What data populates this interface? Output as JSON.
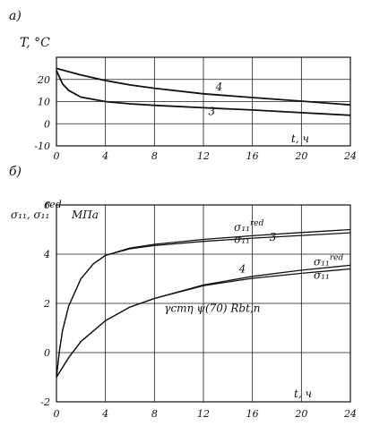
{
  "chart_data": [
    {
      "panel_label": "a)",
      "type": "line",
      "ylabel": "T, °C",
      "xlabel": "t, ч",
      "xlim": [
        0,
        24
      ],
      "ylim": [
        -10,
        30
      ],
      "xticks": [
        "0",
        "4",
        "8",
        "12",
        "16",
        "20",
        "24"
      ],
      "yticks": [
        "20",
        "10",
        "0",
        "-10"
      ],
      "ytick_values": [
        20,
        10,
        0,
        -10
      ],
      "grid": true,
      "series": [
        {
          "name": "4",
          "x": [
            0,
            1,
            2,
            4,
            6,
            8,
            12,
            16,
            20,
            24
          ],
          "values": [
            25,
            23.5,
            22,
            19.5,
            17.5,
            16,
            13.5,
            11.8,
            10.2,
            8.5
          ]
        },
        {
          "name": "3",
          "x": [
            0,
            0.5,
            1,
            2,
            4,
            6,
            8,
            12,
            16,
            20,
            24
          ],
          "values": [
            24,
            18,
            15,
            12,
            10,
            9,
            8.3,
            7.2,
            6.2,
            5,
            3.8
          ]
        }
      ],
      "series_label_positions": [
        {
          "text": "4",
          "x": 13,
          "y": 15
        },
        {
          "text": "3",
          "x": 12.4,
          "y": 4
        }
      ]
    },
    {
      "panel_label": "б)",
      "type": "line",
      "ylabel": "σ₁₁, σ₁₁^red, МПа",
      "xlabel": "t, ч",
      "xlim": [
        0,
        24
      ],
      "ylim": [
        -2,
        6
      ],
      "xticks": [
        "0",
        "4",
        "8",
        "12",
        "16",
        "20",
        "24"
      ],
      "yticks": [
        "6",
        "4",
        "2",
        "0",
        "-2"
      ],
      "ytick_values": [
        6,
        4,
        2,
        0,
        -2
      ],
      "grid": true,
      "series": [
        {
          "name": "σ₁₁^red",
          "group": "3",
          "x": [
            0,
            0.25,
            0.5,
            1,
            2,
            3,
            4,
            6,
            8,
            12,
            16,
            20,
            24
          ],
          "values": [
            -1,
            0.1,
            0.9,
            1.9,
            3.0,
            3.6,
            3.95,
            4.25,
            4.4,
            4.6,
            4.75,
            4.88,
            5.0
          ]
        },
        {
          "name": "σ₁₁",
          "group": "3",
          "x": [
            0,
            0.25,
            0.5,
            1,
            2,
            3,
            4,
            6,
            8,
            12,
            16,
            20,
            24
          ],
          "values": [
            -1,
            0.1,
            0.9,
            1.9,
            3.0,
            3.6,
            3.95,
            4.22,
            4.35,
            4.52,
            4.65,
            4.76,
            4.87
          ]
        },
        {
          "name": "σ₁₁^red",
          "group": "4",
          "x": [
            0,
            1,
            2,
            4,
            6,
            8,
            12,
            16,
            20,
            24
          ],
          "values": [
            -1,
            -0.2,
            0.45,
            1.3,
            1.85,
            2.2,
            2.75,
            3.1,
            3.35,
            3.55
          ]
        },
        {
          "name": "σ₁₁",
          "group": "4",
          "x": [
            0,
            1,
            2,
            4,
            6,
            8,
            12,
            16,
            20,
            24
          ],
          "values": [
            -1,
            -0.2,
            0.45,
            1.3,
            1.85,
            2.2,
            2.72,
            3.02,
            3.22,
            3.4
          ]
        }
      ],
      "annotations": [
        {
          "text": "σ₁₁^red",
          "x": 14.5,
          "y": 4.95
        },
        {
          "text": "σ₁₁",
          "x": 14.5,
          "y": 4.45
        },
        {
          "text": "3",
          "x": 17.4,
          "y": 4.55
        },
        {
          "text": "4",
          "x": 14.9,
          "y": 3.25
        },
        {
          "text": "σ₁₁^red",
          "x": 21,
          "y": 3.55
        },
        {
          "text": "σ₁₁",
          "x": 21,
          "y": 3.0
        },
        {
          "text": "γcmη ψ(70) Rbt,n",
          "x": 8.8,
          "y": 1.65
        }
      ]
    }
  ],
  "labels": {
    "panel_a": "a)",
    "panel_b": "б)",
    "a_ylabel": "T, °C",
    "a_xlabel": "t, ч",
    "b_ylabel_sigma": "σ₁₁, σ₁₁",
    "b_ylabel_red": "red",
    "b_ylabel_unit": "МПа",
    "b_xlabel": "t, ч",
    "note": "γcmη ψ(70) Rbt,n"
  }
}
